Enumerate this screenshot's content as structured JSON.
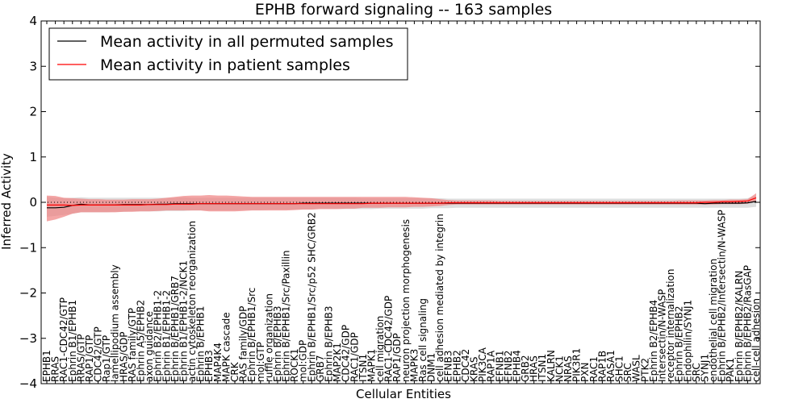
{
  "chart_data": {
    "type": "line",
    "title": "EPHB forward signaling -- 163 samples",
    "xlabel": "Cellular Entities",
    "ylabel": "Inferred Activity",
    "ylim": [
      -4,
      4
    ],
    "yticks": [
      "−4",
      "−3",
      "−2",
      "−1",
      "0",
      "1",
      "2",
      "3",
      "4"
    ],
    "legend_position": "top-left",
    "categories": [
      "EPHB1",
      "RRAS",
      "RAC1-CDC42/GTP",
      "Ephrin B1/EPHB1",
      "RRAS/GTP",
      "RAP1/GTP",
      "CDC42/GTP",
      "Rap1/GTP",
      "lamellipodium assembly",
      "HRAS/GDP",
      "RAS family/GTP",
      "Ephrin A5/EPHB2",
      "axon guidance",
      "Ephrin B2/EPHB1-2",
      "Ephrin B1/EPHB1-2",
      "Ephrin B/EPHB1/GRB7",
      "Ephrin B1/EPHB1-2/NCK1",
      "actin cytoskeleton reorganization",
      "Ephrin B/EPHB1",
      "EPHB3",
      "MAP4K4",
      "MAPK cascade",
      "CRK",
      "RAS family/GDP",
      "Ephrin B/EPHB1/Src",
      "mol:GTP",
      "ruffle organization",
      "Ephrin B/EPHB3",
      "Ephrin B/EPHB1/Src/Paxillin",
      "ROCK1",
      "mol:GDP",
      "Ephrin B/EPHB1/Src/p52 SHC/GRB2",
      "GRB7",
      "Ephrin B/EPHB3",
      "MAP2K1",
      "CDC42/GDP",
      "RAC1/GDP",
      "ITSN1",
      "MAPK1",
      "cell migration",
      "RAC1-CDC42/GDP",
      "RAP1/GDP",
      "neuron projection morphogenesis",
      "MAPK3",
      "Ras cell signaling",
      "DNM1",
      "cell adhesion mediated by integrin",
      "EFNB3",
      "EPHB2",
      "CDC42",
      "KRAS",
      "PIK3CA",
      "RAP1A",
      "EFNB1",
      "EFNB2",
      "EPHB4",
      "GRB2",
      "HRAS",
      "ITSN1",
      "KALRN",
      "NCK1",
      "NRAS",
      "PIK3R1",
      "PXN",
      "RAC1",
      "RAP1B",
      "RASA1",
      "SHC1",
      "SRC",
      "WASL",
      "PTK2",
      "Ephrin B2/EPHB4",
      "Intersectin/N-WASP",
      "receptor internalization",
      "Ephrin B/EPHB2",
      "Endophilin/SYNJ1",
      "SRC",
      "SYNJ1",
      "endothelial cell migration",
      "Ephrin B/EPHB2/Intersectin/N-WASP",
      "PAK1",
      "Ephrin B/EPHB2/KALRN",
      "Ephrin B/EPHB2/RasGAP",
      "cell-cell adhesion"
    ],
    "series": [
      {
        "name": "Mean activity in all permuted samples",
        "color": "#000000",
        "values": [
          -0.12,
          -0.12,
          -0.11,
          -0.07,
          -0.04,
          -0.06,
          -0.06,
          -0.06,
          -0.06,
          -0.05,
          -0.05,
          -0.05,
          -0.05,
          -0.04,
          -0.04,
          -0.03,
          -0.03,
          -0.03,
          -0.03,
          -0.03,
          -0.03,
          -0.03,
          -0.03,
          -0.03,
          -0.03,
          -0.03,
          -0.03,
          -0.03,
          -0.03,
          -0.03,
          -0.02,
          -0.02,
          -0.02,
          -0.02,
          -0.02,
          -0.02,
          -0.02,
          -0.02,
          -0.02,
          -0.02,
          -0.02,
          -0.02,
          -0.02,
          -0.02,
          -0.02,
          -0.02,
          -0.02,
          -0.02,
          -0.02,
          -0.02,
          -0.02,
          -0.02,
          -0.02,
          -0.02,
          -0.02,
          -0.02,
          -0.02,
          -0.02,
          -0.02,
          -0.02,
          -0.02,
          -0.02,
          -0.02,
          -0.02,
          -0.02,
          -0.02,
          -0.02,
          -0.02,
          -0.02,
          -0.02,
          -0.02,
          -0.02,
          -0.02,
          -0.02,
          -0.02,
          -0.02,
          -0.02,
          -0.03,
          -0.02,
          -0.02,
          -0.02,
          -0.02,
          -0.01,
          0.02
        ],
        "lower": [
          -0.32,
          -0.3,
          -0.28,
          -0.25,
          -0.22,
          -0.22,
          -0.22,
          -0.22,
          -0.21,
          -0.21,
          -0.2,
          -0.2,
          -0.2,
          -0.2,
          -0.19,
          -0.19,
          -0.19,
          -0.18,
          -0.18,
          -0.18,
          -0.18,
          -0.18,
          -0.18,
          -0.17,
          -0.17,
          -0.17,
          -0.16,
          -0.16,
          -0.16,
          -0.16,
          -0.16,
          -0.16,
          -0.15,
          -0.15,
          -0.15,
          -0.15,
          -0.15,
          -0.15,
          -0.15,
          -0.14,
          -0.14,
          -0.14,
          -0.14,
          -0.14,
          -0.14,
          -0.13,
          -0.13,
          -0.13,
          -0.12,
          -0.12,
          -0.12,
          -0.12,
          -0.12,
          -0.12,
          -0.12,
          -0.12,
          -0.12,
          -0.12,
          -0.12,
          -0.12,
          -0.12,
          -0.12,
          -0.12,
          -0.12,
          -0.12,
          -0.12,
          -0.12,
          -0.12,
          -0.12,
          -0.12,
          -0.12,
          -0.12,
          -0.12,
          -0.12,
          -0.12,
          -0.12,
          -0.12,
          -0.12,
          -0.12,
          -0.12,
          -0.12,
          -0.12,
          -0.12,
          -0.1
        ],
        "upper": [
          0.12,
          0.1,
          0.09,
          0.1,
          0.11,
          0.1,
          0.1,
          0.1,
          0.1,
          0.1,
          0.1,
          0.1,
          0.1,
          0.1,
          0.1,
          0.1,
          0.11,
          0.1,
          0.1,
          0.1,
          0.1,
          0.1,
          0.1,
          0.1,
          0.1,
          0.1,
          0.1,
          0.1,
          0.1,
          0.1,
          0.1,
          0.1,
          0.1,
          0.1,
          0.1,
          0.1,
          0.1,
          0.09,
          0.09,
          0.09,
          0.09,
          0.09,
          0.09,
          0.09,
          0.09,
          0.09,
          0.09,
          0.08,
          0.08,
          0.08,
          0.08,
          0.08,
          0.08,
          0.08,
          0.08,
          0.08,
          0.08,
          0.08,
          0.08,
          0.08,
          0.08,
          0.08,
          0.08,
          0.08,
          0.08,
          0.08,
          0.08,
          0.08,
          0.08,
          0.08,
          0.08,
          0.08,
          0.08,
          0.08,
          0.08,
          0.08,
          0.08,
          0.08,
          0.08,
          0.08,
          0.08,
          0.08,
          0.09,
          0.15
        ],
        "band_color": "#c8c8c8"
      },
      {
        "name": "Mean activity in patient samples",
        "color": "#ff0000",
        "values": [
          -0.06,
          -0.06,
          -0.06,
          -0.07,
          -0.06,
          -0.06,
          -0.06,
          -0.06,
          -0.06,
          -0.06,
          -0.06,
          -0.06,
          -0.05,
          -0.05,
          -0.05,
          -0.04,
          -0.04,
          -0.04,
          -0.03,
          -0.03,
          -0.03,
          -0.03,
          -0.03,
          -0.03,
          -0.03,
          -0.03,
          -0.03,
          -0.03,
          -0.03,
          -0.03,
          -0.03,
          -0.03,
          -0.03,
          -0.03,
          -0.03,
          -0.03,
          -0.03,
          -0.03,
          -0.02,
          -0.02,
          -0.02,
          -0.02,
          -0.02,
          -0.02,
          -0.02,
          -0.02,
          -0.02,
          -0.01,
          -0.01,
          -0.01,
          -0.01,
          -0.01,
          -0.01,
          -0.01,
          -0.01,
          -0.01,
          -0.01,
          -0.01,
          -0.01,
          -0.01,
          -0.01,
          -0.01,
          -0.01,
          -0.01,
          -0.01,
          -0.01,
          -0.01,
          -0.01,
          -0.01,
          -0.01,
          -0.01,
          -0.01,
          -0.01,
          -0.01,
          -0.01,
          -0.01,
          -0.01,
          0.0,
          0.0,
          0.01,
          0.01,
          0.02,
          0.03,
          0.1
        ],
        "lower": [
          -0.42,
          -0.38,
          -0.32,
          -0.25,
          -0.22,
          -0.22,
          -0.22,
          -0.22,
          -0.22,
          -0.21,
          -0.21,
          -0.2,
          -0.2,
          -0.19,
          -0.18,
          -0.18,
          -0.18,
          -0.18,
          -0.18,
          -0.2,
          -0.2,
          -0.2,
          -0.2,
          -0.19,
          -0.18,
          -0.18,
          -0.18,
          -0.18,
          -0.18,
          -0.17,
          -0.16,
          -0.16,
          -0.15,
          -0.15,
          -0.15,
          -0.14,
          -0.14,
          -0.12,
          -0.12,
          -0.12,
          -0.11,
          -0.11,
          -0.11,
          -0.1,
          -0.1,
          -0.09,
          -0.08,
          -0.06,
          -0.05,
          -0.05,
          -0.05,
          -0.05,
          -0.05,
          -0.05,
          -0.05,
          -0.05,
          -0.05,
          -0.05,
          -0.05,
          -0.05,
          -0.05,
          -0.05,
          -0.05,
          -0.05,
          -0.05,
          -0.05,
          -0.05,
          -0.05,
          -0.05,
          -0.05,
          -0.05,
          -0.05,
          -0.05,
          -0.05,
          -0.05,
          -0.05,
          -0.05,
          -0.05,
          -0.05,
          -0.04,
          -0.04,
          -0.04,
          -0.03,
          0.02
        ],
        "upper": [
          0.15,
          0.14,
          0.1,
          0.09,
          0.08,
          0.07,
          0.07,
          0.06,
          0.06,
          0.06,
          0.07,
          0.07,
          0.07,
          0.08,
          0.1,
          0.12,
          0.14,
          0.15,
          0.15,
          0.16,
          0.15,
          0.15,
          0.14,
          0.13,
          0.12,
          0.12,
          0.12,
          0.12,
          0.12,
          0.12,
          0.12,
          0.12,
          0.12,
          0.12,
          0.12,
          0.12,
          0.12,
          0.12,
          0.12,
          0.12,
          0.12,
          0.12,
          0.12,
          0.11,
          0.1,
          0.09,
          0.07,
          0.05,
          0.04,
          0.04,
          0.04,
          0.04,
          0.04,
          0.03,
          0.03,
          0.03,
          0.03,
          0.03,
          0.03,
          0.03,
          0.03,
          0.03,
          0.03,
          0.03,
          0.03,
          0.03,
          0.03,
          0.03,
          0.03,
          0.03,
          0.03,
          0.03,
          0.03,
          0.03,
          0.04,
          0.04,
          0.04,
          0.04,
          0.05,
          0.05,
          0.06,
          0.06,
          0.07,
          0.2
        ],
        "band_color": "#f08080"
      }
    ],
    "zero_line": {
      "style": "dotted",
      "color": "#000000"
    },
    "grid": false
  }
}
